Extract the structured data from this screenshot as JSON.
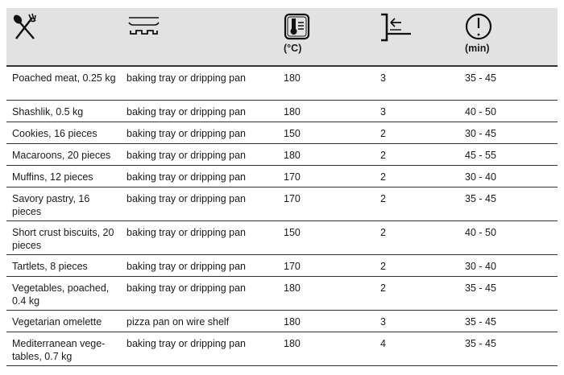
{
  "header": {
    "columns": [
      {
        "icon": "cutlery-icon",
        "meaning": "food",
        "unit": ""
      },
      {
        "icon": "tray-icon",
        "meaning": "accessory",
        "unit": ""
      },
      {
        "icon": "thermometer-icon",
        "meaning": "temperature",
        "unit": "(°C)"
      },
      {
        "icon": "shelf-level-icon",
        "meaning": "shelf position",
        "unit": ""
      },
      {
        "icon": "clock-icon",
        "meaning": "time",
        "unit": "(min)"
      }
    ]
  },
  "rows": [
    {
      "food": "Poached meat, 0.25 kg",
      "accessory": "baking tray or dripping pan",
      "temp": "180",
      "level": "3",
      "time": "35 - 45"
    },
    {
      "food": "Shashlik, 0.5 kg",
      "accessory": "baking tray or dripping pan",
      "temp": "180",
      "level": "3",
      "time": "40 - 50"
    },
    {
      "food": "Cookies, 16 pieces",
      "accessory": "baking tray or dripping pan",
      "temp": "150",
      "level": "2",
      "time": "30 - 45"
    },
    {
      "food": "Macaroons, 20 pieces",
      "accessory": "baking tray or dripping pan",
      "temp": "180",
      "level": "2",
      "time": "45 - 55"
    },
    {
      "food": "Muffins, 12 pieces",
      "accessory": "baking tray or dripping pan",
      "temp": "170",
      "level": "2",
      "time": "30 - 40"
    },
    {
      "food": "Savory pastry, 16 pieces",
      "accessory": "baking tray or dripping pan",
      "temp": "170",
      "level": "2",
      "time": "35 - 45"
    },
    {
      "food": "Short crust biscuits, 20 pieces",
      "accessory": "baking tray or dripping pan",
      "temp": "150",
      "level": "2",
      "time": "40 - 50"
    },
    {
      "food": "Tartlets, 8 pieces",
      "accessory": "baking tray or dripping pan",
      "temp": "170",
      "level": "2",
      "time": "30 - 40"
    },
    {
      "food": "Vegetables, poached, 0.4 kg",
      "accessory": "baking tray or dripping pan",
      "temp": "180",
      "level": "2",
      "time": "35 - 45"
    },
    {
      "food": "Vegetarian omelette",
      "accessory": "pizza pan on wire shelf",
      "temp": "180",
      "level": "3",
      "time": "35 - 45"
    },
    {
      "food": "Mediterranean vege-tables, 0.7 kg",
      "accessory": "baking tray or dripping pan",
      "temp": "180",
      "level": "4",
      "time": "35 - 45"
    }
  ]
}
